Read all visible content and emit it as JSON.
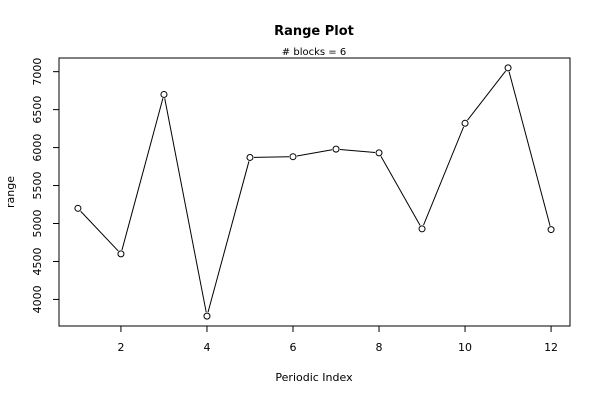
{
  "chart_data": {
    "type": "line",
    "title": "Range Plot",
    "subtitle": "# blocks =  6",
    "xlabel": "Periodic Index",
    "ylabel": "range",
    "x": [
      1,
      2,
      3,
      4,
      5,
      6,
      7,
      8,
      9,
      10,
      11,
      12
    ],
    "series": [
      {
        "values": [
          5200,
          4600,
          6700,
          3780,
          5870,
          5880,
          5980,
          5930,
          4930,
          6320,
          7050,
          4920
        ]
      }
    ],
    "x_ticks": [
      2,
      4,
      6,
      8,
      10,
      12
    ],
    "y_ticks": [
      4000,
      4500,
      5000,
      5500,
      6000,
      6500,
      7000
    ],
    "xlim": [
      0.56,
      12.44
    ],
    "ylim": [
      3650,
      7180
    ],
    "grid": false,
    "markers": "open-circle",
    "line_color": "#000000"
  }
}
